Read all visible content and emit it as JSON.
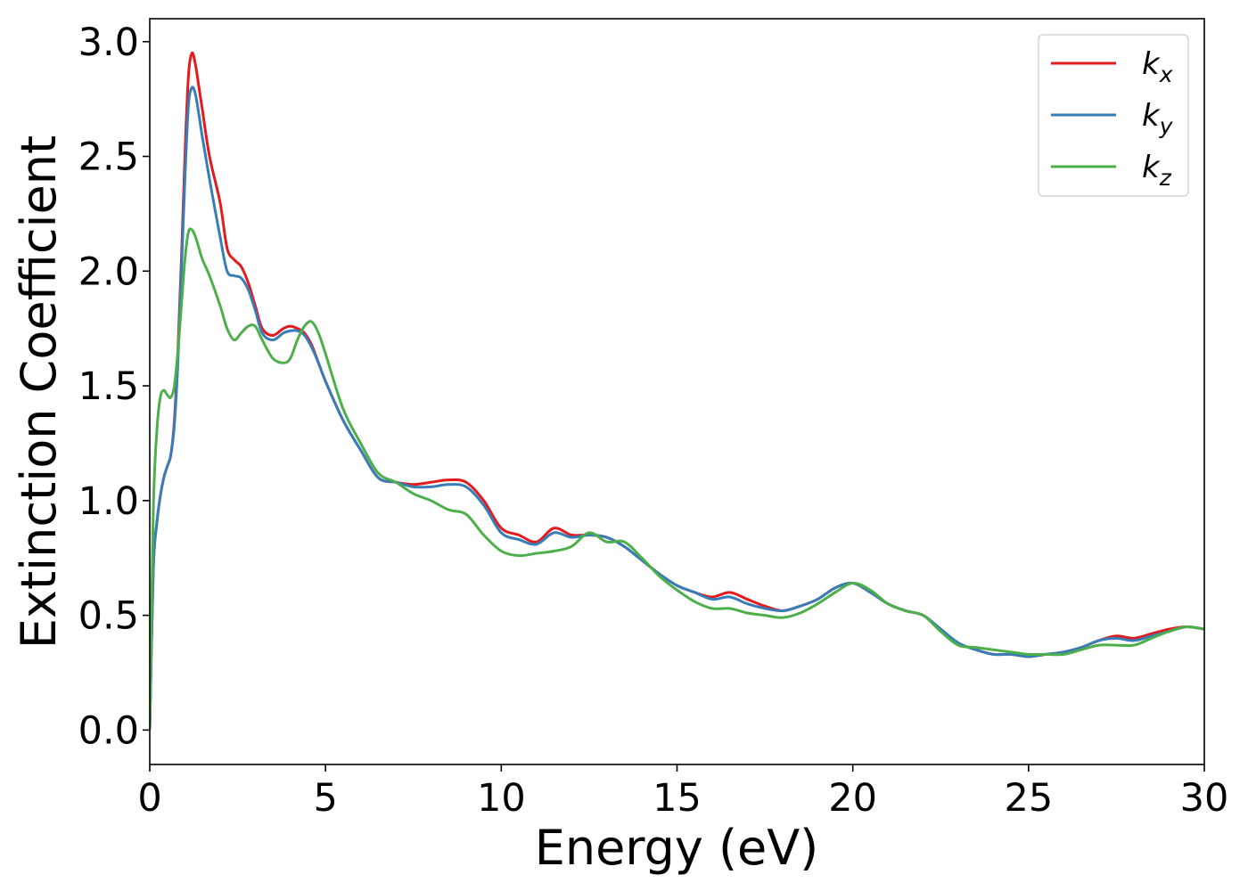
{
  "chart_data": {
    "type": "line",
    "xlabel": "Energy (eV)",
    "ylabel": "Extinction Coefficient",
    "xlim": [
      0,
      30
    ],
    "ylim": [
      -0.15,
      3.1
    ],
    "xticks": [
      0,
      5,
      10,
      15,
      20,
      25,
      30
    ],
    "xtick_labels": [
      "0",
      "5",
      "10",
      "15",
      "20",
      "25",
      "30"
    ],
    "yticks": [
      0.0,
      0.5,
      1.0,
      1.5,
      2.0,
      2.5,
      3.0
    ],
    "ytick_labels": [
      "0.0",
      "0.5",
      "1.0",
      "1.5",
      "2.0",
      "2.5",
      "3.0"
    ],
    "grid": false,
    "legend_position": "top-right",
    "x": [
      0,
      0.1,
      0.2,
      0.3,
      0.4,
      0.5,
      0.6,
      0.7,
      0.8,
      0.9,
      1.0,
      1.1,
      1.2,
      1.3,
      1.4,
      1.5,
      1.7,
      2.0,
      2.2,
      2.4,
      2.6,
      2.8,
      3.0,
      3.2,
      3.5,
      3.8,
      4.0,
      4.2,
      4.4,
      4.6,
      4.8,
      5.0,
      5.5,
      6.0,
      6.5,
      7.0,
      7.5,
      8.0,
      8.5,
      9.0,
      9.5,
      10.0,
      10.5,
      11.0,
      11.5,
      12.0,
      12.5,
      13.0,
      13.5,
      14.0,
      14.5,
      15.0,
      15.5,
      16.0,
      16.5,
      17.0,
      17.5,
      18.0,
      18.5,
      19.0,
      19.5,
      20.0,
      20.5,
      21.0,
      21.5,
      22.0,
      22.5,
      23.0,
      23.5,
      24.0,
      24.5,
      25.0,
      25.5,
      26.0,
      26.5,
      27.0,
      27.5,
      28.0,
      28.5,
      29.0,
      29.5,
      30.0
    ],
    "series": [
      {
        "name": "k_x",
        "color": "#e41a1c",
        "values": [
          0.0,
          0.7,
          0.9,
          1.02,
          1.1,
          1.15,
          1.2,
          1.35,
          1.65,
          2.05,
          2.5,
          2.85,
          2.95,
          2.9,
          2.8,
          2.7,
          2.5,
          2.3,
          2.1,
          2.05,
          2.02,
          1.95,
          1.85,
          1.75,
          1.72,
          1.75,
          1.76,
          1.75,
          1.73,
          1.68,
          1.6,
          1.52,
          1.35,
          1.22,
          1.1,
          1.08,
          1.07,
          1.08,
          1.09,
          1.08,
          1.0,
          0.88,
          0.85,
          0.82,
          0.88,
          0.85,
          0.85,
          0.84,
          0.8,
          0.74,
          0.68,
          0.63,
          0.6,
          0.58,
          0.6,
          0.57,
          0.54,
          0.52,
          0.54,
          0.57,
          0.62,
          0.64,
          0.6,
          0.55,
          0.52,
          0.5,
          0.44,
          0.38,
          0.35,
          0.33,
          0.33,
          0.32,
          0.33,
          0.34,
          0.36,
          0.39,
          0.41,
          0.4,
          0.42,
          0.44,
          0.45,
          0.44
        ]
      },
      {
        "name": "k_y",
        "color": "#377eb8",
        "values": [
          0.0,
          0.7,
          0.9,
          1.02,
          1.1,
          1.15,
          1.2,
          1.33,
          1.6,
          2.0,
          2.4,
          2.72,
          2.8,
          2.77,
          2.68,
          2.58,
          2.4,
          2.15,
          2.0,
          1.98,
          1.97,
          1.92,
          1.83,
          1.73,
          1.7,
          1.73,
          1.74,
          1.74,
          1.72,
          1.67,
          1.6,
          1.52,
          1.35,
          1.22,
          1.1,
          1.08,
          1.06,
          1.06,
          1.07,
          1.06,
          0.98,
          0.86,
          0.83,
          0.81,
          0.86,
          0.84,
          0.85,
          0.84,
          0.8,
          0.74,
          0.68,
          0.63,
          0.6,
          0.57,
          0.58,
          0.55,
          0.53,
          0.52,
          0.54,
          0.57,
          0.62,
          0.64,
          0.6,
          0.55,
          0.52,
          0.5,
          0.44,
          0.38,
          0.35,
          0.33,
          0.33,
          0.32,
          0.33,
          0.34,
          0.36,
          0.39,
          0.4,
          0.39,
          0.41,
          0.43,
          0.45,
          0.44
        ]
      },
      {
        "name": "k_z",
        "color": "#4daf4a",
        "values": [
          0.0,
          0.95,
          1.3,
          1.45,
          1.48,
          1.46,
          1.45,
          1.5,
          1.65,
          1.85,
          2.05,
          2.17,
          2.18,
          2.15,
          2.1,
          2.05,
          1.98,
          1.85,
          1.75,
          1.7,
          1.73,
          1.76,
          1.76,
          1.7,
          1.62,
          1.6,
          1.62,
          1.7,
          1.76,
          1.78,
          1.73,
          1.64,
          1.4,
          1.25,
          1.12,
          1.08,
          1.03,
          1.0,
          0.96,
          0.94,
          0.85,
          0.78,
          0.76,
          0.77,
          0.78,
          0.8,
          0.86,
          0.82,
          0.82,
          0.75,
          0.67,
          0.61,
          0.56,
          0.53,
          0.53,
          0.51,
          0.5,
          0.49,
          0.51,
          0.55,
          0.6,
          0.64,
          0.61,
          0.55,
          0.52,
          0.5,
          0.43,
          0.37,
          0.36,
          0.35,
          0.34,
          0.33,
          0.33,
          0.33,
          0.35,
          0.37,
          0.37,
          0.37,
          0.4,
          0.43,
          0.45,
          0.44
        ]
      }
    ]
  }
}
